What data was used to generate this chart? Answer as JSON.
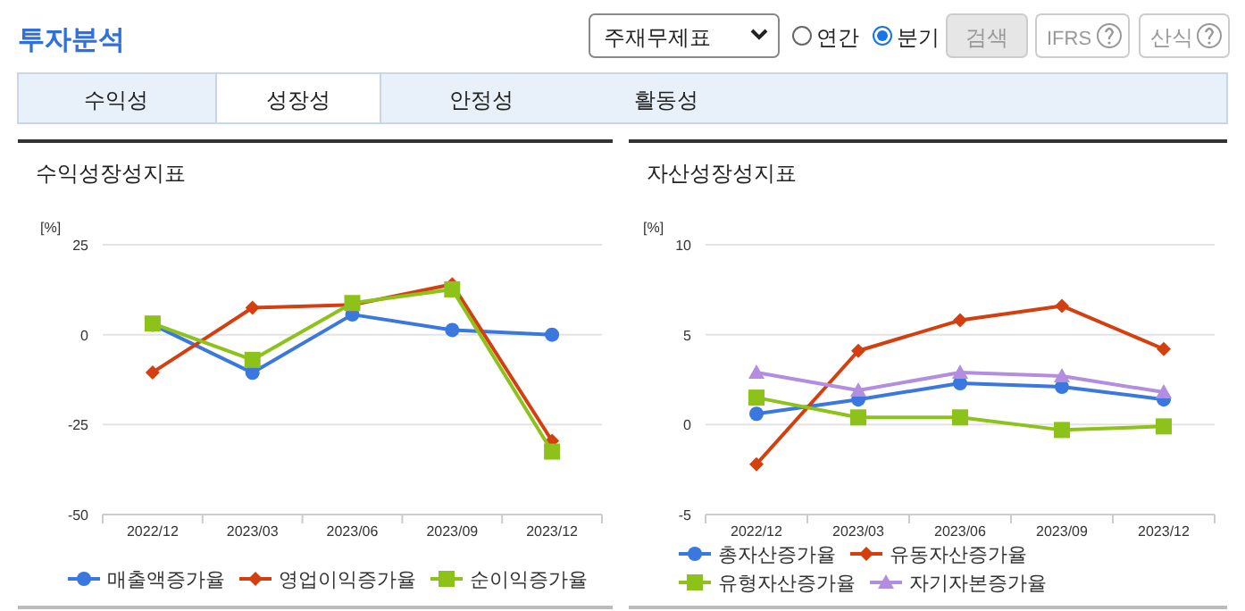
{
  "chart_data": [
    {
      "type": "other",
      "title": "투자분석",
      "annotations": [
        "주재무제표",
        "연간",
        "분기",
        "검색",
        "IFRS",
        "산식",
        "수익성",
        "성장성",
        "안정성",
        "활동성"
      ]
    },
    {
      "type": "line",
      "title": "수익성장성지표",
      "ylabel": "[%]",
      "categories": [
        "2022/12",
        "2023/03",
        "2023/06",
        "2023/09",
        "2023/12"
      ],
      "ylim": [
        -50,
        25
      ],
      "yticks": [
        -50,
        -25,
        0,
        25
      ],
      "grid": "y",
      "legend": "bottom",
      "series": [
        {
          "name": "매출액증가율",
          "color": "#3a78e0",
          "marker": "circle",
          "values": [
            2.8,
            -10.6,
            5.6,
            1.3,
            0
          ]
        },
        {
          "name": "영업이익증가율",
          "color": "#d43f10",
          "marker": "diamond",
          "values": [
            -10.5,
            7.5,
            8.3,
            14,
            -29.5
          ]
        },
        {
          "name": "순이익증가율",
          "color": "#8cc21a",
          "marker": "square",
          "values": [
            3.1,
            -7,
            8.8,
            12.6,
            -32.5
          ]
        }
      ]
    },
    {
      "type": "line",
      "title": "자산성장성지표",
      "ylabel": "[%]",
      "categories": [
        "2022/12",
        "2023/03",
        "2023/06",
        "2023/09",
        "2023/12"
      ],
      "ylim": [
        -5,
        10
      ],
      "yticks": [
        -5,
        0,
        5,
        10
      ],
      "grid": "y",
      "legend": "bottom",
      "series": [
        {
          "name": "총자산증가율",
          "color": "#3a78e0",
          "marker": "circle",
          "values": [
            0.6,
            1.4,
            2.3,
            2.1,
            1.4
          ]
        },
        {
          "name": "유동자산증가율",
          "color": "#d43f10",
          "marker": "diamond",
          "values": [
            -2.2,
            4.1,
            5.8,
            6.6,
            4.2
          ]
        },
        {
          "name": "유형자산증가율",
          "color": "#8cc21a",
          "marker": "square",
          "values": [
            1.5,
            0.4,
            0.4,
            -0.3,
            -0.1
          ]
        },
        {
          "name": "자기자본증가율",
          "color": "#b38de0",
          "marker": "triangle",
          "values": [
            2.9,
            1.9,
            2.9,
            2.7,
            1.8
          ]
        }
      ]
    }
  ]
}
